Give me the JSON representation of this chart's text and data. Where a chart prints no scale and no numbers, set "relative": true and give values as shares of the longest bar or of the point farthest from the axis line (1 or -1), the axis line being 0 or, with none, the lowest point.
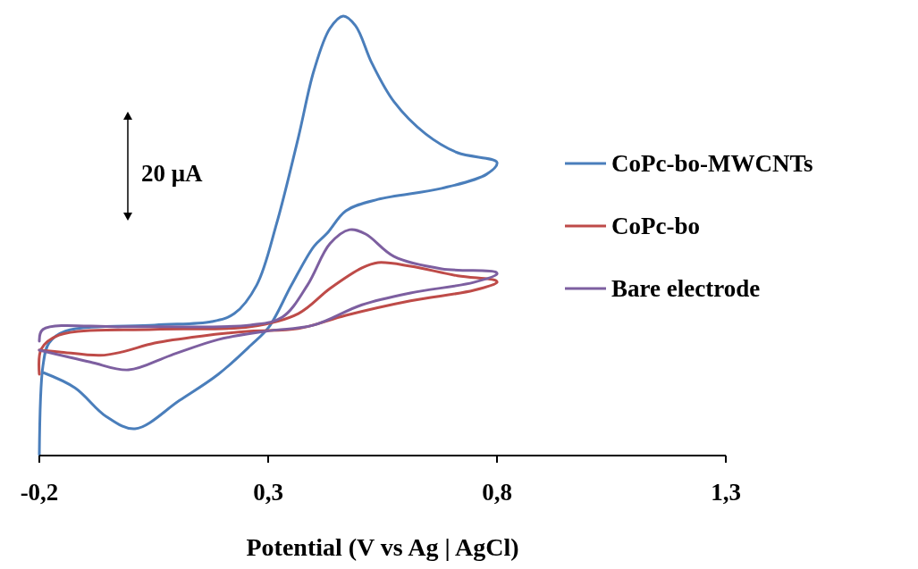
{
  "chart_data": {
    "type": "line",
    "relative": true,
    "xlabel": "Potential (V vs Ag | AgCl)",
    "xlim": [
      -0.2,
      1.3
    ],
    "xticks": [
      {
        "value": -0.2,
        "label": "-0,2"
      },
      {
        "value": 0.3,
        "label": "0,3"
      },
      {
        "value": 0.8,
        "label": "0,8"
      },
      {
        "value": 1.3,
        "label": "1,3"
      }
    ],
    "grid": false,
    "legend": "right",
    "marker": "none",
    "line_style": "solid",
    "annotations": [
      "20 μA"
    ],
    "series": [
      {
        "name": "CoPc-bo-MWCNTs",
        "color": "#4a7ebb",
        "x": [
          -0.2,
          -0.192,
          -0.179,
          -0.143,
          0.052,
          0.177,
          0.226,
          0.275,
          0.318,
          0.366,
          0.4,
          0.435,
          0.464,
          0.491,
          0.527,
          0.575,
          0.644,
          0.714,
          0.8,
          0.777,
          0.679,
          0.54,
          0.47,
          0.429,
          0.4,
          0.351,
          0.302,
          0.261,
          0.191,
          0.107,
          0.009,
          -0.054,
          -0.122,
          -0.192
        ],
        "values": [
          0.002,
          0.205,
          0.256,
          0.283,
          0.297,
          0.305,
          0.323,
          0.388,
          0.526,
          0.724,
          0.876,
          0.972,
          1.0,
          0.978,
          0.892,
          0.805,
          0.732,
          0.689,
          0.667,
          0.64,
          0.608,
          0.583,
          0.557,
          0.506,
          0.476,
          0.388,
          0.293,
          0.25,
          0.185,
          0.126,
          0.061,
          0.089,
          0.154,
          0.189
        ]
      },
      {
        "name": "CoPc-bo",
        "color": "#be4b48",
        "x": [
          -0.2,
          -0.196,
          -0.157,
          0.052,
          0.261,
          0.366,
          0.435,
          0.505,
          0.54,
          0.611,
          0.714,
          0.798,
          0.8,
          0.749,
          0.611,
          0.47,
          0.366,
          0.261,
          0.155,
          0.052,
          -0.018,
          -0.067,
          -0.157,
          -0.2
        ],
        "values": [
          0.185,
          0.242,
          0.274,
          0.287,
          0.293,
          0.323,
          0.38,
          0.427,
          0.439,
          0.431,
          0.409,
          0.398,
          0.394,
          0.376,
          0.352,
          0.319,
          0.289,
          0.283,
          0.272,
          0.256,
          0.236,
          0.228,
          0.236,
          0.24
        ]
      },
      {
        "name": "Bare electrode",
        "color": "#7d5fa0",
        "x": [
          -0.2,
          -0.192,
          -0.018,
          0.261,
          0.331,
          0.386,
          0.435,
          0.478,
          0.513,
          0.575,
          0.679,
          0.798,
          0.8,
          0.749,
          0.611,
          0.505,
          0.4,
          0.296,
          0.191,
          0.087,
          -0.005,
          -0.089,
          -0.2
        ],
        "values": [
          0.26,
          0.287,
          0.293,
          0.297,
          0.315,
          0.388,
          0.482,
          0.514,
          0.504,
          0.453,
          0.425,
          0.417,
          0.413,
          0.394,
          0.37,
          0.343,
          0.297,
          0.283,
          0.264,
          0.228,
          0.195,
          0.213,
          0.24
        ]
      }
    ]
  }
}
